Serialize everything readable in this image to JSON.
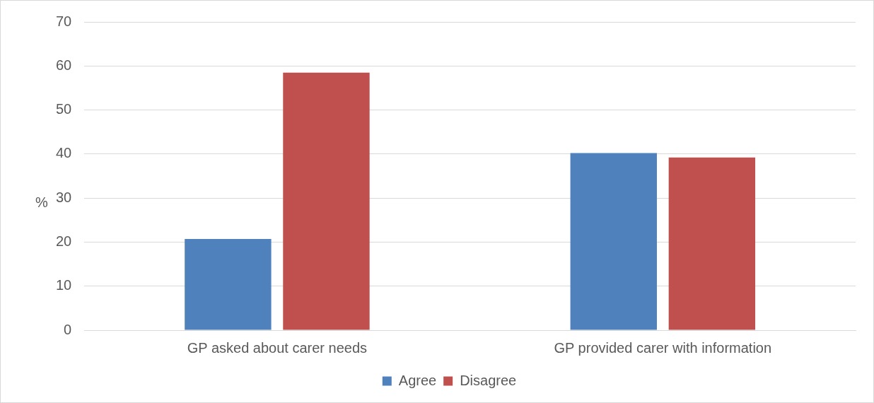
{
  "chart_data": {
    "type": "bar",
    "ylabel": "%",
    "categories": [
      "GP asked about carer needs",
      "GP provided carer with information"
    ],
    "series": [
      {
        "name": "Agree",
        "color": "#4f81bd",
        "values": [
          20.7,
          40.2
        ]
      },
      {
        "name": "Disagree",
        "color": "#c0504d",
        "values": [
          58.5,
          39.2
        ]
      }
    ],
    "ylim": [
      0,
      70
    ],
    "yticks": [
      0,
      10,
      20,
      30,
      40,
      50,
      60,
      70
    ],
    "grid": "y",
    "legend": "bottom"
  }
}
